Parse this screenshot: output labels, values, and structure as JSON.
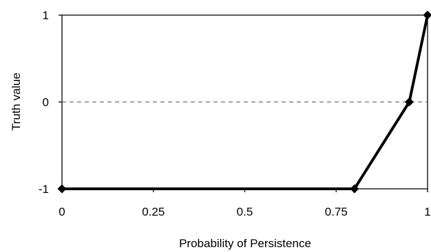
{
  "chart_data": {
    "type": "line",
    "title": "",
    "xlabel": "Probability of Persistence",
    "ylabel": "Truth value",
    "xlim": [
      0,
      1
    ],
    "ylim": [
      -1,
      1
    ],
    "x_ticks": [
      0,
      0.25,
      0.5,
      0.75,
      1
    ],
    "y_ticks": [
      -1,
      0,
      1
    ],
    "x_tick_labels": [
      "0",
      "0.25",
      "0.5",
      "0.75",
      "1"
    ],
    "y_tick_labels": [
      "-1",
      "0",
      "1"
    ],
    "grid": false,
    "reference_line": {
      "y": 0,
      "style": "dashed"
    },
    "series": [
      {
        "x": [
          0,
          0.8,
          0.95,
          1
        ],
        "y": [
          -1,
          -1,
          0,
          1
        ],
        "color": "#000000",
        "marker": "diamond"
      }
    ]
  }
}
